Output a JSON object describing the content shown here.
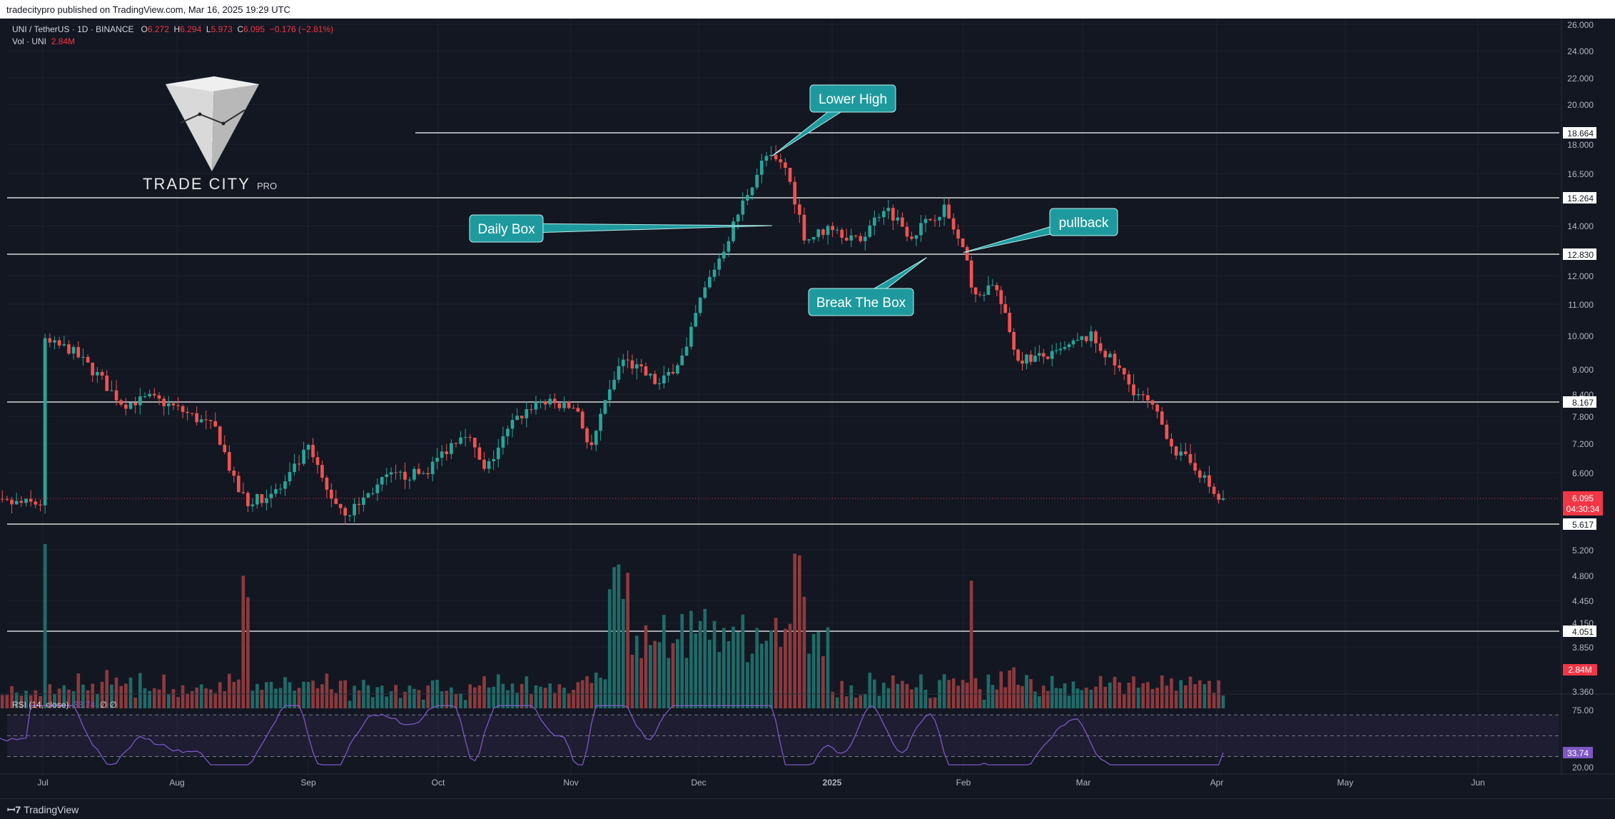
{
  "header": {
    "published": "tradecitypro published on TradingView.com, Mar 16, 2025 19:29 UTC"
  },
  "legend": {
    "symbol": "UNI / TetherUS · 1D · BINANCE",
    "o_label": "O",
    "o": "6.272",
    "h_label": "H",
    "h": "6.294",
    "l_label": "L",
    "l": "5.973",
    "c_label": "C",
    "c": "6.095",
    "change": "−0.176 (−2.81%)",
    "vol_label": "Vol · UNI",
    "vol": "2.84M",
    "rsi_label": "RSI (14, close)",
    "rsi_value": "33.74",
    "rsi_extra": "∅ ∅"
  },
  "logo": {
    "brand": "TRADE CITY",
    "suffix": "PRO"
  },
  "footer": {
    "brand": "TradingView"
  },
  "colors": {
    "up": "#26a69a",
    "down": "#ef5350",
    "vol_up": "#1f6b68",
    "vol_down": "#8c3a3d",
    "grid": "#1e222d",
    "level_line": "#ffffff",
    "callout": "#1e9a9e",
    "rsi_line": "#7e57c2",
    "price_label": "#f23645"
  },
  "chart_data": {
    "type": "candlestick",
    "price_axis_ticks": [
      "26.000",
      "24.000",
      "22.000",
      "20.000",
      "18.000",
      "16.500",
      "14.000",
      "12.000",
      "11.000",
      "10.000",
      "9.000",
      "8.400",
      "7.800",
      "7.200",
      "6.600",
      "5.200",
      "4.800",
      "4.450",
      "4.150",
      "3.850",
      "3.360"
    ],
    "time_axis_labels": [
      "Jul",
      "Aug",
      "Sep",
      "Oct",
      "Nov",
      "Dec",
      "2025",
      "Feb",
      "Mar",
      "Apr",
      "May",
      "Jun"
    ],
    "levels": [
      {
        "price": 18.664,
        "label": "18.664"
      },
      {
        "price": 15.264,
        "label": "15.264"
      },
      {
        "price": 12.83,
        "label": "12.830"
      },
      {
        "price": 8.167,
        "label": "8.167"
      },
      {
        "price": 5.617,
        "label": "5.617"
      },
      {
        "price": 4.051,
        "label": "4.051"
      }
    ],
    "last_price": {
      "price": 6.095,
      "label": "6.095",
      "countdown": "04:30:34"
    },
    "volume_label": "2.84M",
    "annotations": [
      {
        "text": "Lower High",
        "anchor_month": 5.55,
        "anchor_price": 17.4
      },
      {
        "text": "Daily Box",
        "anchor_month": 5.55,
        "anchor_price": 14.0
      },
      {
        "text": "pullback",
        "anchor_month": 7.0,
        "anchor_price": 12.9
      },
      {
        "text": "Break The Box",
        "anchor_month": 6.72,
        "anchor_price": 12.7
      }
    ],
    "rsi": {
      "name": "RSI (14, close)",
      "value": 33.74,
      "value_label": "33.74",
      "axis_labels": [
        "75.00",
        "20.00"
      ],
      "bands": [
        70,
        50,
        30
      ]
    },
    "price_path": [
      [
        0.0,
        9.8
      ],
      [
        0.2,
        9.6
      ],
      [
        0.45,
        8.7
      ],
      [
        0.6,
        8.1
      ],
      [
        0.8,
        8.3
      ],
      [
        1.0,
        8.0
      ],
      [
        1.3,
        7.5
      ],
      [
        1.45,
        6.3
      ],
      [
        1.55,
        6.0
      ],
      [
        1.8,
        6.3
      ],
      [
        2.0,
        7.1
      ],
      [
        2.15,
        6.2
      ],
      [
        2.3,
        5.8
      ],
      [
        2.6,
        6.5
      ],
      [
        2.9,
        6.6
      ],
      [
        3.2,
        7.5
      ],
      [
        3.35,
        6.6
      ],
      [
        3.55,
        7.6
      ],
      [
        3.75,
        8.2
      ],
      [
        4.05,
        8.0
      ],
      [
        4.15,
        7.0
      ],
      [
        4.4,
        9.3
      ],
      [
        4.7,
        8.6
      ],
      [
        4.9,
        9.5
      ],
      [
        5.0,
        11.0
      ],
      [
        5.2,
        13.2
      ],
      [
        5.4,
        16.0
      ],
      [
        5.5,
        17.4
      ],
      [
        5.65,
        16.8
      ],
      [
        5.8,
        13.4
      ],
      [
        6.0,
        14.0
      ],
      [
        6.2,
        13.3
      ],
      [
        6.4,
        14.9
      ],
      [
        6.6,
        13.6
      ],
      [
        6.85,
        14.8
      ],
      [
        7.0,
        12.9
      ],
      [
        7.1,
        11.2
      ],
      [
        7.25,
        11.8
      ],
      [
        7.45,
        9.3
      ],
      [
        7.75,
        9.4
      ],
      [
        8.05,
        10.0
      ],
      [
        8.35,
        8.6
      ],
      [
        8.5,
        8.1
      ],
      [
        8.7,
        7.0
      ],
      [
        8.85,
        6.7
      ],
      [
        9.0,
        6.1
      ],
      [
        9.05,
        6.0
      ]
    ],
    "candles_count": 272,
    "data_start": "Jun 14, 2024",
    "data_end": "Mar 16, 2025"
  }
}
